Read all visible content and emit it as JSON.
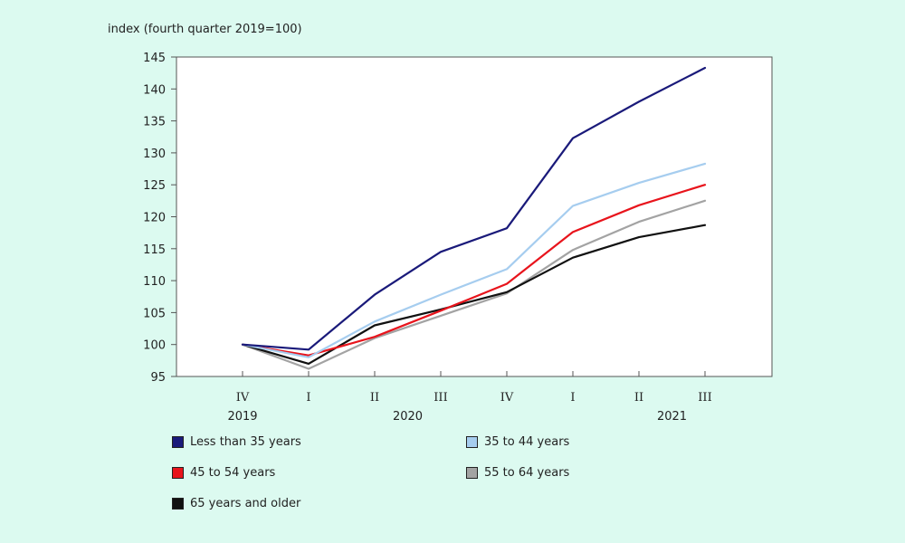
{
  "chart_data": {
    "type": "line",
    "ylabel": "index (fourth quarter 2019=100)",
    "ylim": [
      95,
      145
    ],
    "yticks": [
      95,
      100,
      105,
      110,
      115,
      120,
      125,
      130,
      135,
      140,
      145
    ],
    "categories": [
      "IV",
      "I",
      "II",
      "III",
      "IV",
      "I",
      "II",
      "III"
    ],
    "year_labels": [
      {
        "label": "2019",
        "category_index": 0
      },
      {
        "label": "2020",
        "category_index": 2.5
      },
      {
        "label": "2021",
        "category_index": 6.5
      }
    ],
    "series": [
      {
        "name": "Less than 35 years",
        "color": "#1a1a7a",
        "values": [
          100,
          99.2,
          107.8,
          114.5,
          118.2,
          132.3,
          138.0,
          143.3
        ]
      },
      {
        "name": "35 to 44 years",
        "color": "#a6cdef",
        "values": [
          100,
          98.0,
          103.6,
          107.8,
          111.8,
          121.7,
          125.3,
          128.3
        ]
      },
      {
        "name": "45 to 54 years",
        "color": "#e8141c",
        "values": [
          100,
          98.3,
          101.2,
          105.3,
          109.5,
          117.6,
          121.8,
          125.0
        ]
      },
      {
        "name": "55 to 64 years",
        "color": "#a3a3a3",
        "values": [
          100,
          96.2,
          101.0,
          104.5,
          108.0,
          114.8,
          119.2,
          122.5
        ]
      },
      {
        "name": "65 years and older",
        "color": "#111111",
        "values": [
          100,
          97.0,
          103.0,
          105.5,
          108.2,
          113.6,
          116.8,
          118.7
        ]
      }
    ],
    "legend_position": "bottom",
    "grid": false
  }
}
